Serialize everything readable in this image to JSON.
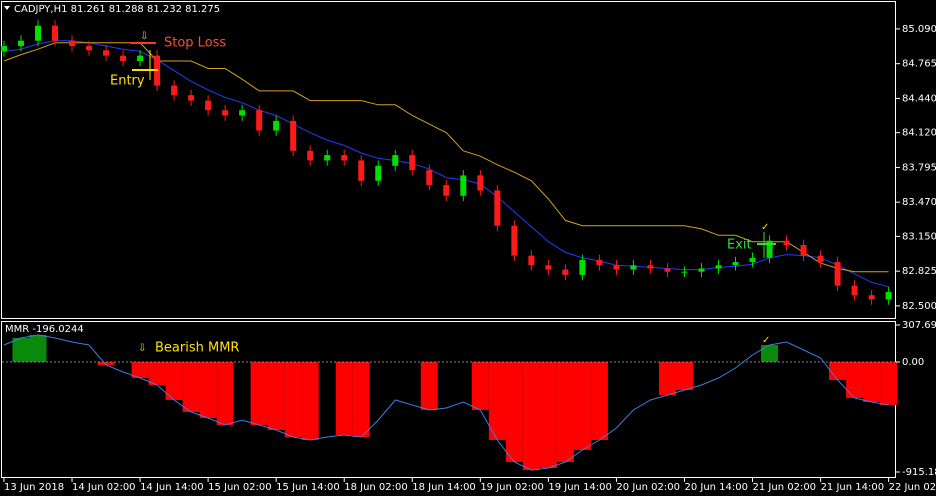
{
  "chart_data": [
    {
      "type": "candlestick",
      "title": "CADJPY,H1  81.261 81.288 81.232 81.275",
      "x": [
        0,
        3,
        6,
        9,
        12,
        15,
        18,
        21,
        24,
        27,
        30,
        33,
        36,
        39,
        42,
        45,
        48,
        51,
        54,
        57,
        60,
        63,
        66,
        69,
        72,
        75,
        78,
        81,
        84,
        87,
        90,
        93,
        96,
        99,
        102,
        105,
        108,
        111,
        114,
        117,
        120,
        123,
        126,
        129,
        132,
        135,
        138,
        141,
        144,
        147,
        150,
        153,
        156
      ],
      "open": [
        84.88,
        84.93,
        84.98,
        85.12,
        84.98,
        84.93,
        84.89,
        84.84,
        84.79,
        84.84,
        84.56,
        84.47,
        84.42,
        84.33,
        84.28,
        84.33,
        84.14,
        84.23,
        83.95,
        83.86,
        83.91,
        83.86,
        83.67,
        83.81,
        83.91,
        83.77,
        83.63,
        83.53,
        83.72,
        83.58,
        83.25,
        82.97,
        82.88,
        82.84,
        82.79,
        82.93,
        82.88,
        82.84,
        82.88,
        82.85,
        82.82,
        82.82,
        82.85,
        82.88,
        82.91,
        82.95,
        83.11,
        83.07,
        82.97,
        82.91,
        82.69,
        82.6,
        82.56
      ],
      "high": [
        84.98,
        85.03,
        85.17,
        85.17,
        85.03,
        84.98,
        84.94,
        84.89,
        84.89,
        84.89,
        84.61,
        84.52,
        84.47,
        84.38,
        84.38,
        84.38,
        84.28,
        84.28,
        84.0,
        83.96,
        83.96,
        83.91,
        83.86,
        83.96,
        83.96,
        83.82,
        83.68,
        83.77,
        83.77,
        83.63,
        83.3,
        83.02,
        82.93,
        82.89,
        82.98,
        82.98,
        82.93,
        82.93,
        82.93,
        82.9,
        82.87,
        82.9,
        82.93,
        82.96,
        83.0,
        83.16,
        83.16,
        83.12,
        83.02,
        82.96,
        82.74,
        82.65,
        82.68
      ],
      "low": [
        84.83,
        84.88,
        84.93,
        84.93,
        84.88,
        84.84,
        84.79,
        84.74,
        84.74,
        84.51,
        84.42,
        84.37,
        84.28,
        84.23,
        84.23,
        84.09,
        84.09,
        83.9,
        83.81,
        83.81,
        83.81,
        83.62,
        83.62,
        83.76,
        83.72,
        83.58,
        83.48,
        83.48,
        83.53,
        83.2,
        82.92,
        82.83,
        82.79,
        82.74,
        82.74,
        82.83,
        82.79,
        82.79,
        82.8,
        82.77,
        82.77,
        82.77,
        82.8,
        82.83,
        82.86,
        82.9,
        83.02,
        82.92,
        82.86,
        82.64,
        82.55,
        82.51,
        82.51
      ],
      "close": [
        84.93,
        84.98,
        85.12,
        84.98,
        84.93,
        84.89,
        84.84,
        84.79,
        84.84,
        84.56,
        84.47,
        84.42,
        84.33,
        84.28,
        84.33,
        84.14,
        84.23,
        83.95,
        83.86,
        83.91,
        83.86,
        83.67,
        83.81,
        83.91,
        83.77,
        83.63,
        83.53,
        83.72,
        83.58,
        83.25,
        82.97,
        82.88,
        82.84,
        82.79,
        82.93,
        82.88,
        82.84,
        82.88,
        82.85,
        82.82,
        82.82,
        82.85,
        82.88,
        82.91,
        82.95,
        83.11,
        83.07,
        82.97,
        82.91,
        82.69,
        82.6,
        82.56,
        82.63
      ],
      "up_color": "#00e000",
      "down_color": "#ff1a1a",
      "overlays": [
        {
          "color": "#1f3dff",
          "values": [
            84.88,
            84.9,
            84.95,
            84.98,
            84.98,
            84.96,
            84.93,
            84.9,
            84.88,
            84.8,
            84.7,
            84.6,
            84.52,
            84.45,
            84.4,
            84.33,
            84.28,
            84.2,
            84.12,
            84.05,
            84.0,
            83.93,
            83.88,
            83.86,
            83.83,
            83.78,
            83.7,
            83.68,
            83.64,
            83.52,
            83.38,
            83.24,
            83.1,
            83.0,
            82.95,
            82.92,
            82.88,
            82.87,
            82.86,
            82.85,
            82.84,
            82.84,
            82.86,
            82.87,
            82.89,
            82.95,
            82.98,
            82.97,
            82.95,
            82.88,
            82.8,
            82.72,
            82.68
          ]
        },
        {
          "color": "#d4a017",
          "values": [
            84.79,
            84.85,
            84.9,
            84.96,
            84.96,
            84.96,
            84.96,
            84.96,
            84.96,
            84.79,
            84.79,
            84.79,
            84.72,
            84.72,
            84.62,
            84.51,
            84.51,
            84.51,
            84.42,
            84.42,
            84.42,
            84.42,
            84.38,
            84.38,
            84.28,
            84.2,
            84.12,
            83.95,
            83.9,
            83.82,
            83.75,
            83.67,
            83.5,
            83.3,
            83.25,
            83.25,
            83.25,
            83.25,
            83.25,
            83.25,
            83.25,
            83.22,
            83.16,
            83.16,
            83.1,
            83.1,
            83.1,
            83.0,
            82.9,
            82.85,
            82.82,
            82.82,
            82.82
          ]
        }
      ],
      "xlim": [
        -0.7,
        157.3
      ],
      "xticks": [
        {
          "value": 0,
          "label": "13 Jun 2018"
        },
        {
          "value": 12,
          "label": "14 Jun 02:00"
        },
        {
          "value": 24,
          "label": "14 Jun 14:00"
        },
        {
          "value": 36,
          "label": "15 Jun 02:00"
        },
        {
          "value": 48,
          "label": "15 Jun 14:00"
        },
        {
          "value": 60,
          "label": "18 Jun 02:00"
        },
        {
          "value": 72,
          "label": "18 Jun 14:00"
        },
        {
          "value": 84,
          "label": "19 Jun 02:00"
        },
        {
          "value": 96,
          "label": "19 Jun 14:00"
        },
        {
          "value": 108,
          "label": "20 Jun 02:00"
        },
        {
          "value": 120,
          "label": "20 Jun 14:00"
        },
        {
          "value": 132,
          "label": "21 Jun 02:00"
        },
        {
          "value": 144,
          "label": "21 Jun 14:00"
        },
        {
          "value": 156,
          "label": "22 Jun 02:00"
        }
      ],
      "ylim": [
        82.387,
        85.351
      ],
      "yticks": [
        {
          "value": 85.09,
          "label": "85.090"
        },
        84.765,
        {
          "value": 84.44,
          "label": "84.440"
        },
        {
          "value": 84.12,
          "label": "84.120"
        },
        83.795,
        {
          "value": 83.47,
          "label": "83.470"
        },
        {
          "value": 83.15,
          "label": "83.150"
        },
        82.825,
        {
          "value": 82.5,
          "label": "82.500"
        }
      ],
      "annotations": {
        "stop_loss": "Stop Loss",
        "entry": "Entry",
        "exit": "Exit",
        "sell_arrow": "⇩",
        "exit_check": "✓"
      }
    },
    {
      "type": "oscillator",
      "title": "MMR -196.0244",
      "line_color": "#3b7fe0",
      "positive_color": "#0a8a0a",
      "negative_color": "#ff0000",
      "values": [
        141,
        200,
        225,
        200,
        166,
        141,
        -25,
        -83,
        -133,
        -191,
        -316,
        -416,
        -466,
        -524,
        -483,
        -524,
        -566,
        -624,
        -649,
        -624,
        -607,
        -624,
        -483,
        -316,
        -358,
        -399,
        -383,
        -333,
        -399,
        -649,
        -832,
        -899,
        -882,
        -832,
        -732,
        -649,
        -549,
        -399,
        -316,
        -275,
        -233,
        -191,
        -133,
        -50,
        58,
        141,
        166,
        100,
        33,
        -150,
        -300,
        -333,
        -358
      ],
      "histogram": [
        null,
        200,
        225,
        null,
        null,
        null,
        -25,
        null,
        -133,
        -191,
        -316,
        -416,
        -466,
        -524,
        null,
        -524,
        -566,
        -624,
        -649,
        null,
        -607,
        -624,
        null,
        null,
        null,
        -399,
        null,
        null,
        -399,
        -649,
        -832,
        -899,
        -882,
        -832,
        -732,
        -649,
        null,
        null,
        null,
        -275,
        -233,
        null,
        null,
        null,
        null,
        141,
        null,
        null,
        null,
        -150,
        -300,
        -333,
        -358
      ],
      "ylim": [
        -965,
        341
      ],
      "yticks": [
        {
          "value": 307.6963,
          "label": "307.6963"
        },
        {
          "value": 0,
          "label": "0.00"
        },
        {
          "value": -915.1863,
          "label": "-915.1863"
        }
      ],
      "annotations": {
        "signal": "Bearish MMR",
        "arrow": "⇩",
        "check": "✓"
      }
    }
  ]
}
